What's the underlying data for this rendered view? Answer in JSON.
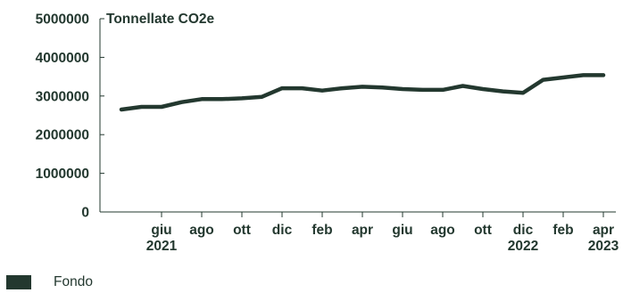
{
  "chart_data": {
    "type": "line",
    "ylabel": "Tonnellate CO2e",
    "ylim": [
      0,
      5000000
    ],
    "yticks": [
      0,
      1000000,
      2000000,
      3000000,
      4000000,
      5000000
    ],
    "ytick_labels": [
      "0",
      "1000000",
      "2000000",
      "3000000",
      "4000000",
      "5000000"
    ],
    "x_months": [
      "2021-04",
      "2021-05",
      "2021-06",
      "2021-07",
      "2021-08",
      "2021-09",
      "2021-10",
      "2021-11",
      "2021-12",
      "2022-01",
      "2022-02",
      "2022-03",
      "2022-04",
      "2022-05",
      "2022-06",
      "2022-07",
      "2022-08",
      "2022-09",
      "2022-10",
      "2022-11",
      "2022-12",
      "2023-01",
      "2023-02",
      "2023-03",
      "2023-04"
    ],
    "xticks": [
      {
        "month": "2021-06",
        "label": "giu",
        "year": "2021"
      },
      {
        "month": "2021-08",
        "label": "ago",
        "year": ""
      },
      {
        "month": "2021-10",
        "label": "ott",
        "year": ""
      },
      {
        "month": "2021-12",
        "label": "dic",
        "year": ""
      },
      {
        "month": "2022-02",
        "label": "feb",
        "year": ""
      },
      {
        "month": "2022-04",
        "label": "apr",
        "year": ""
      },
      {
        "month": "2022-06",
        "label": "giu",
        "year": ""
      },
      {
        "month": "2022-08",
        "label": "ago",
        "year": ""
      },
      {
        "month": "2022-10",
        "label": "ott",
        "year": ""
      },
      {
        "month": "2022-12",
        "label": "dic",
        "year": "2022"
      },
      {
        "month": "2023-02",
        "label": "feb",
        "year": ""
      },
      {
        "month": "2023-04",
        "label": "apr",
        "year": "2023"
      }
    ],
    "series": [
      {
        "name": "Fondo",
        "color": "#23382f",
        "values": [
          2650000,
          2720000,
          2720000,
          2840000,
          2920000,
          2920000,
          2940000,
          2980000,
          3200000,
          3200000,
          3140000,
          3200000,
          3240000,
          3220000,
          3180000,
          3160000,
          3160000,
          3260000,
          3180000,
          3120000,
          3080000,
          3420000,
          3480000,
          3540000,
          3540000
        ]
      }
    ],
    "grid": false,
    "legend": "bottom-left"
  }
}
